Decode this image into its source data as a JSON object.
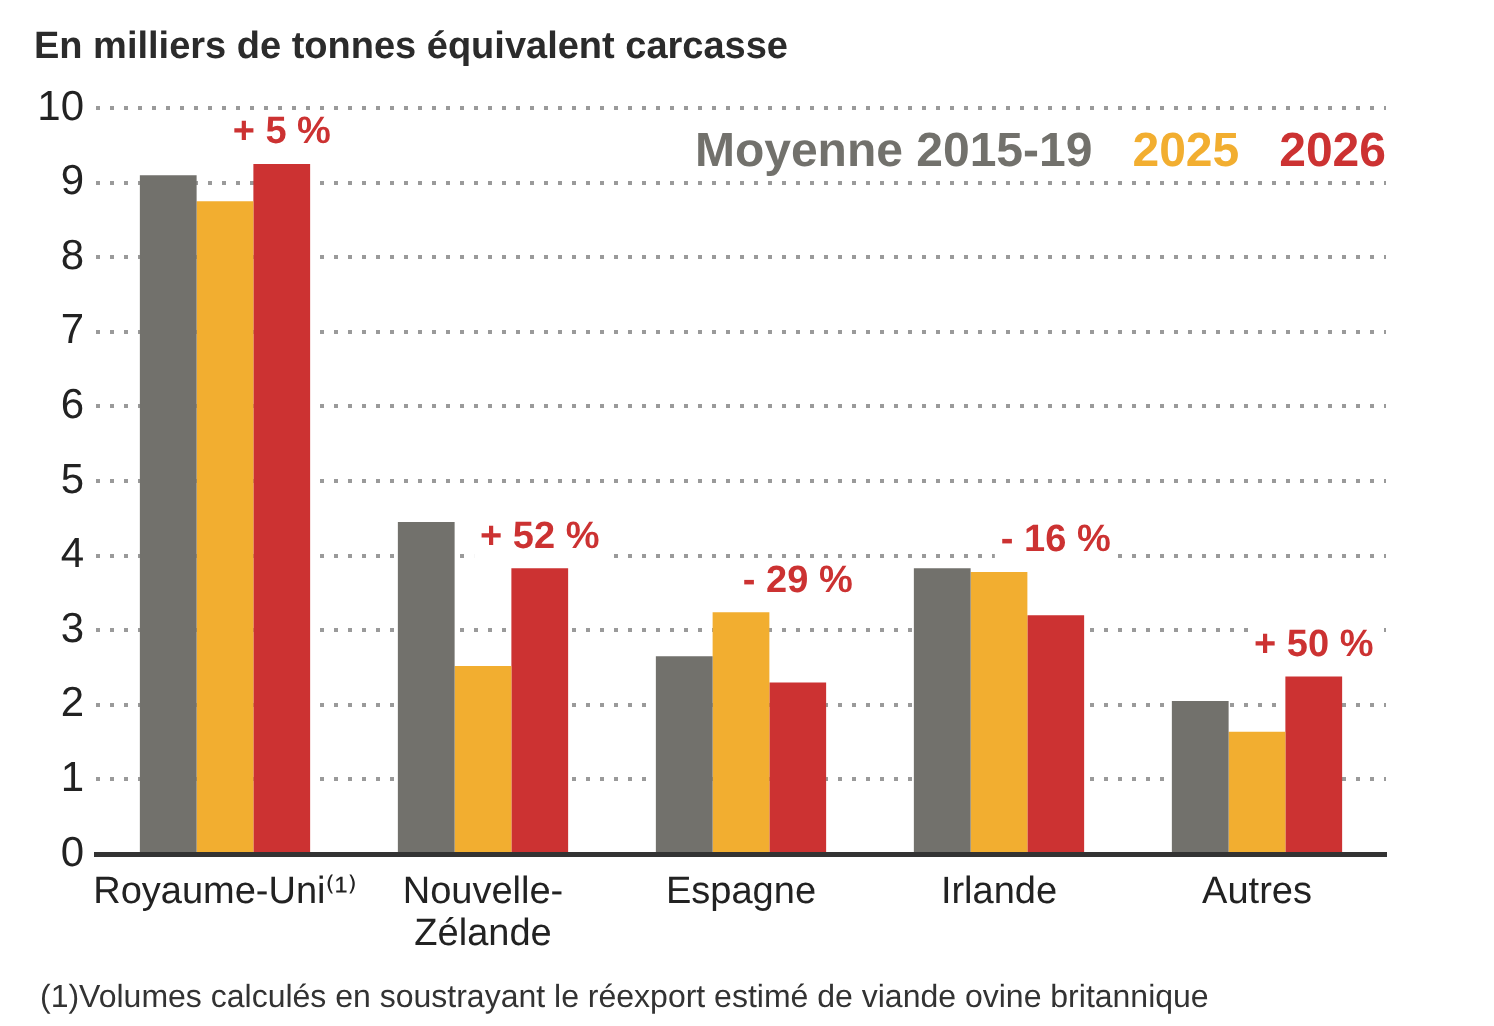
{
  "chart_data": {
    "type": "bar",
    "ylabel": "En milliers de tonnes équivalent carcasse",
    "categories": [
      "Royaume-Uni⁽¹⁾",
      "Nouvelle-Zélande",
      "Espagne",
      "Irlande",
      "Autres"
    ],
    "series": [
      {
        "name": "Moyenne 2015-19",
        "color": "#72716c",
        "values": [
          9.1,
          4.45,
          2.65,
          3.83,
          2.05
        ]
      },
      {
        "name": "2025",
        "color": "#f2ae30",
        "values": [
          8.75,
          2.52,
          3.24,
          3.78,
          1.64
        ]
      },
      {
        "name": "2026",
        "color": "#cc3232",
        "values": [
          9.25,
          3.83,
          2.3,
          3.2,
          2.38
        ]
      }
    ],
    "ylim": [
      0,
      10
    ],
    "yticks": [
      0,
      1,
      2,
      3,
      4,
      5,
      6,
      7,
      8,
      9,
      10
    ],
    "grid": "y",
    "legend": "top right",
    "annotations": [
      "+ 5 %",
      "+ 52 %",
      "- 29 %",
      "- 16 %",
      "+ 50 %",
      "(1)Volumes calculés en soustrayant le réexport estimé de viande ovine britannique"
    ]
  }
}
